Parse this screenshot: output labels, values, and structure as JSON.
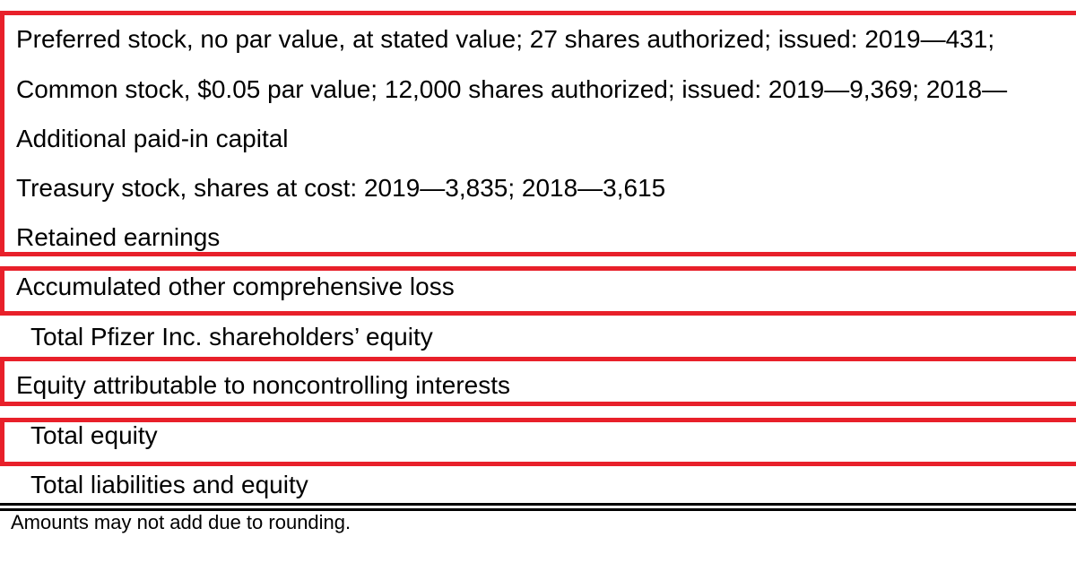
{
  "rows": {
    "preferred_stock": "Preferred stock, no par value, at stated value; 27 shares authorized; issued: 2019—431;",
    "common_stock": "Common stock, $0.05 par value; 12,000 shares authorized; issued: 2019—9,369; 2018—",
    "additional_paid_in_capital": "Additional paid-in capital",
    "treasury_stock": "Treasury stock, shares at cost: 2019—3,835; 2018—3,615",
    "retained_earnings": "Retained earnings",
    "accumulated_oci": "Accumulated other comprehensive loss",
    "total_pfizer_equity": "Total Pfizer Inc. shareholders’ equity",
    "noncontrolling_interests": "Equity attributable to noncontrolling interests",
    "total_equity": "Total equity",
    "total_liabilities_equity": "Total liabilities and equity"
  },
  "footnote": "Amounts may not add due to rounding.",
  "colors": {
    "highlight_border": "#e8202a",
    "text": "#000000",
    "background": "#ffffff"
  }
}
